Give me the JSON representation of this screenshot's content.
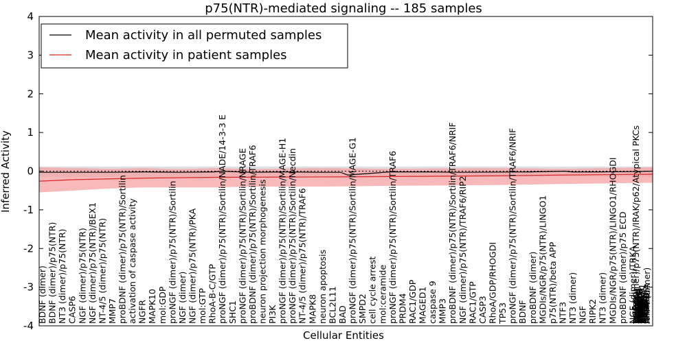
{
  "chart_data": {
    "type": "line",
    "title": "p75(NTR)-mediated signaling -- 185 samples",
    "xlabel": "Cellular Entities",
    "ylabel": "Inferred Activity",
    "ylim": [
      -4,
      4
    ],
    "yticks": [
      -4,
      -3,
      -2,
      -1,
      0,
      1,
      2,
      3,
      4
    ],
    "reference_line_y": 0,
    "grid": false,
    "legend_position": "top-left",
    "colors": {
      "permuted_line": "#000000",
      "patient_line": "#d62728",
      "patient_band": "#f4a2a2",
      "permuted_band": "#c8c8d0"
    },
    "series": [
      {
        "name": "Mean activity in all permuted samples",
        "color": "#000000",
        "x": [
          0,
          10,
          20,
          30,
          40,
          50,
          52,
          60,
          70,
          80,
          86,
          88,
          100,
          110,
          120,
          140,
          150,
          152,
          160,
          170,
          175
        ],
        "values": [
          -0.03,
          -0.03,
          -0.03,
          -0.02,
          -0.03,
          -0.02,
          0.0,
          -0.03,
          -0.02,
          -0.03,
          -0.03,
          -0.1,
          -0.02,
          -0.02,
          -0.03,
          -0.02,
          0.0,
          -0.02,
          -0.02,
          -0.01,
          0.0
        ]
      },
      {
        "name": "Mean activity in patient samples",
        "color": "#d62728",
        "x": [
          0,
          10,
          20,
          30,
          50,
          80,
          100,
          130,
          150,
          175
        ],
        "values": [
          -0.26,
          -0.22,
          -0.2,
          -0.18,
          -0.16,
          -0.15,
          -0.14,
          -0.12,
          -0.1,
          -0.08
        ]
      }
    ],
    "patient_band": {
      "x": [
        0,
        10,
        20,
        30,
        40,
        50,
        60,
        80,
        100,
        130,
        150,
        175
      ],
      "upper": [
        0.1,
        0.08,
        0.06,
        0.08,
        0.05,
        0.08,
        0.05,
        0.08,
        0.06,
        0.08,
        0.06,
        0.1
      ],
      "lower": [
        -0.55,
        -0.5,
        -0.45,
        -0.42,
        -0.42,
        -0.42,
        -0.4,
        -0.4,
        -0.38,
        -0.36,
        -0.33,
        -0.3
      ]
    },
    "permuted_band": {
      "x": [
        0,
        175
      ],
      "upper": [
        0.12,
        0.12
      ],
      "lower": [
        -0.15,
        -0.15
      ]
    },
    "entity_labels": [
      "BDNF (dimer)",
      "BDNF (dimer)/p75(NTR)",
      "NT3 (dimer)/p75(NTR)",
      "CASP6",
      "NGF (dimer)/p75(NTR)",
      "NGF (dimer)/p75(NTR)/BEX1",
      "NT-4/5 (dimer)/p75(NTR)",
      "MMP7",
      "proBDNF (dimer)/p75(NTR)/Sortilin",
      "activation of caspase activity",
      "NGFR",
      "MAPK10",
      "mol:GDP",
      "proNGF (dimer)/p75(NTR)/Sortilin",
      "NGF (dimer)",
      "NGF (dimer)/p75(NTR)/PKA",
      "mol:GTP",
      "RhoA-B-C/GTP",
      "proNGF (dimer)/p75(NTR)/Sortilin/NADE/14-3-3 E",
      "SHC1",
      "proNGF (dimer)/p75(NTR)/Sortilin/NRAGE",
      "proBDNF (dimer)/p75(NTR)/Sortilin/TRAF6",
      "neuron projection morphogenesis",
      "PI3K",
      "proNGF (dimer)/p75(NTR)/Sortilin/MAGE-H1",
      "proNGF (dimer)/p75(NTR)/Sortilin/Necdin",
      "NT-4/5 (dimer)/p75(NTR)/TRAF6",
      "MAPK8",
      "neuron apoptosis",
      "BCL2L11",
      "BAD",
      "proNGF (dimer)/p75(NTR)/Sortilin/MAGE-G1",
      "SMPD2",
      "cell cycle arrest",
      "mol:ceramide",
      "proNGF (dimer)/p75(NTR)/Sortilin/TRAF6",
      "PRDM4",
      "RAC1/GDP",
      "MAGED1",
      "caspase 9",
      "MMP3",
      "proBDNF (dimer)/p75(NTR)/Sortilin/TRAF6/NRIF",
      "NGF (dimer)/p75(NTR)/TRAF6/RIP2",
      "RAC1/GTP",
      "CASP3",
      "RhoA/GDP/RHOGDI",
      "TP53",
      "proNGF (dimer)/p75(NTR)/Sortilin/TRAF6/NRIF",
      "BDNF",
      "proBDNF (dimer)",
      "MGDIs/NGR/p75(NTR)/LINGO1",
      "p75(NTR)/beta APP",
      "NTF3",
      "NT3 (dimer)",
      "NGF",
      "RIPK2",
      "NT3 (dimer)",
      "MGDIs/NGR/p75(NTR)/LINGO1/RHOGDI",
      "proBDNF (dimer)/p75 ECD",
      "NGF (dimer)/TRKA",
      "NTF4",
      "NGF (dimer)/p75(NTR)/IRAK/p62/Atypical PKCs",
      "RHOGDI",
      "TRAF6",
      "IRAK1",
      "MAGEH1",
      "SORT1",
      "NDN",
      "ZNF274",
      "LINGO1",
      "RTN4R",
      "SQSTM1",
      "PRKCZ",
      "PRKCI",
      "MAGEG1",
      "BEX1",
      "YWHAE",
      "NGFRAP1",
      "APP",
      "NTRK1",
      "PRKACA",
      "RHOA",
      "RHOB",
      "RHOC",
      "RAC1",
      "PIK3CA",
      "PIK3R1",
      "CASP9",
      "ARHGDIA",
      "NTF4 (dimer)"
    ]
  }
}
